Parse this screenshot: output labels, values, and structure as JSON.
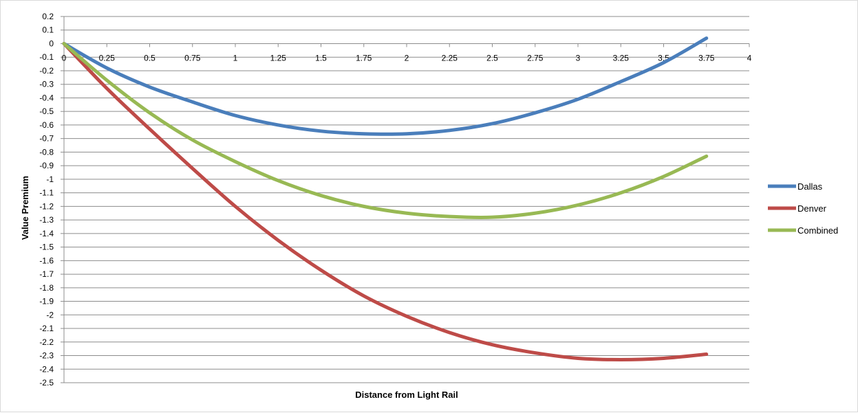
{
  "chart_data": {
    "type": "line",
    "title": "",
    "xlabel": "Distance from Light Rail",
    "ylabel": "Value Premium",
    "xlim": [
      0,
      4
    ],
    "ylim": [
      -2.5,
      0.2
    ],
    "x_ticks": [
      "0",
      "0.25",
      "0.5",
      "0.75",
      "1",
      "1.25",
      "1.5",
      "1.75",
      "2",
      "2.25",
      "2.5",
      "2.75",
      "3",
      "3.25",
      "3.5",
      "3.75",
      "4"
    ],
    "y_ticks": [
      "0.2",
      "0.1",
      "0",
      "-0.1",
      "-0.2",
      "-0.3",
      "-0.4",
      "-0.5",
      "-0.6",
      "-0.7",
      "-0.8",
      "-0.9",
      "-1",
      "-1.1",
      "-1.2",
      "-1.3",
      "-1.4",
      "-1.5",
      "-1.6",
      "-1.7",
      "-1.8",
      "-1.9",
      "-2",
      "-2.1",
      "-2.2",
      "-2.3",
      "-2.4",
      "-2.5"
    ],
    "grid": true,
    "legend_position": "right",
    "x": [
      0,
      0.25,
      0.5,
      0.75,
      1,
      1.25,
      1.5,
      1.75,
      2,
      2.25,
      2.5,
      2.75,
      3,
      3.25,
      3.5,
      3.75
    ],
    "series": [
      {
        "name": "Dallas",
        "color": "#4a7ebb",
        "values": [
          0,
          -0.18,
          -0.32,
          -0.43,
          -0.53,
          -0.6,
          -0.645,
          -0.665,
          -0.665,
          -0.64,
          -0.59,
          -0.51,
          -0.41,
          -0.28,
          -0.14,
          0.04
        ]
      },
      {
        "name": "Denver",
        "color": "#be4b48",
        "values": [
          0,
          -0.33,
          -0.63,
          -0.92,
          -1.2,
          -1.45,
          -1.67,
          -1.86,
          -2.01,
          -2.13,
          -2.22,
          -2.28,
          -2.32,
          -2.33,
          -2.32,
          -2.29
        ]
      },
      {
        "name": "Combined",
        "color": "#98b954",
        "values": [
          0,
          -0.27,
          -0.51,
          -0.71,
          -0.87,
          -1.01,
          -1.12,
          -1.2,
          -1.25,
          -1.275,
          -1.28,
          -1.25,
          -1.19,
          -1.1,
          -0.98,
          -0.83
        ]
      }
    ]
  }
}
